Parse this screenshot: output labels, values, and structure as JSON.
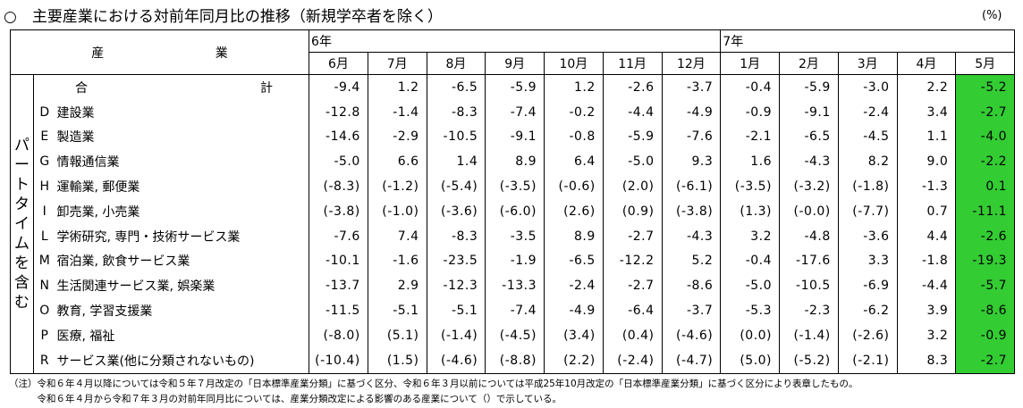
{
  "title": "○　主要産業における対前年同月比の推移（新規学卒者を除く）",
  "unit": "(%)",
  "header": {
    "industry_char1": "産",
    "industry_char2": "業",
    "years": [
      "6年",
      "7年"
    ],
    "months": [
      "6月",
      "7月",
      "8月",
      "9月",
      "10月",
      "11月",
      "12月",
      "1月",
      "2月",
      "3月",
      "4月",
      "5月"
    ]
  },
  "side_label": [
    "パ",
    "ー",
    "ト",
    "タ",
    "イ",
    "ム",
    "を",
    "含",
    "む"
  ],
  "highlight_color": "#33cc33",
  "rows": [
    {
      "code": "",
      "name_l": "合",
      "name_r": "計",
      "values": [
        "-9.4",
        "1.2",
        "-6.5",
        "-5.9",
        "1.2",
        "-2.6",
        "-3.7",
        "-0.4",
        "-5.9",
        "-3.0",
        "2.2",
        "-5.2"
      ]
    },
    {
      "code": "D",
      "name": "建設業",
      "values": [
        "-12.8",
        "-1.4",
        "-8.3",
        "-7.4",
        "-0.2",
        "-4.4",
        "-4.9",
        "-0.9",
        "-9.1",
        "-2.4",
        "3.4",
        "-2.7"
      ]
    },
    {
      "code": "E",
      "name": "製造業",
      "values": [
        "-14.6",
        "-2.9",
        "-10.5",
        "-9.1",
        "-0.8",
        "-5.9",
        "-7.6",
        "-2.1",
        "-6.5",
        "-4.5",
        "1.1",
        "-4.0"
      ]
    },
    {
      "code": "G",
      "name": "情報通信業",
      "values": [
        "-5.0",
        "6.6",
        "1.4",
        "8.9",
        "6.4",
        "-5.0",
        "9.3",
        "1.6",
        "-4.3",
        "8.2",
        "9.0",
        "-2.2"
      ]
    },
    {
      "code": "H",
      "name": "運輸業, 郵便業",
      "values": [
        "(-8.3)",
        "(-1.2)",
        "(-5.4)",
        "(-3.5)",
        "(-0.6)",
        "(2.0)",
        "(-6.1)",
        "(-3.5)",
        "(-3.2)",
        "(-1.8)",
        "-1.3",
        "0.1"
      ]
    },
    {
      "code": "I",
      "name": "卸売業, 小売業",
      "values": [
        "(-3.8)",
        "(-1.0)",
        "(-3.6)",
        "(-6.0)",
        "(2.6)",
        "(0.9)",
        "(-3.8)",
        "(1.3)",
        "(-0.0)",
        "(-7.7)",
        "0.7",
        "-11.1"
      ]
    },
    {
      "code": "L",
      "name": "学術研究, 専門・技術サービス業",
      "values": [
        "-7.6",
        "7.4",
        "-8.3",
        "-3.5",
        "8.9",
        "-2.7",
        "-4.3",
        "3.2",
        "-4.8",
        "-3.6",
        "4.4",
        "-2.6"
      ]
    },
    {
      "code": "M",
      "name": "宿泊業, 飲食サービス業",
      "values": [
        "-10.1",
        "-1.6",
        "-23.5",
        "-1.9",
        "-6.5",
        "-12.2",
        "5.2",
        "-0.4",
        "-17.6",
        "3.3",
        "-1.8",
        "-19.3"
      ]
    },
    {
      "code": "N",
      "name": "生活関連サービス業, 娯楽業",
      "values": [
        "-13.7",
        "2.9",
        "-12.3",
        "-13.3",
        "-2.4",
        "-2.7",
        "-8.6",
        "-5.0",
        "-10.5",
        "-6.9",
        "-4.4",
        "-5.7"
      ]
    },
    {
      "code": "O",
      "name": "教育, 学習支援業",
      "values": [
        "-11.5",
        "-5.1",
        "-5.1",
        "-7.4",
        "-4.9",
        "-6.4",
        "-3.7",
        "-5.3",
        "-2.3",
        "-6.2",
        "3.9",
        "-8.6"
      ]
    },
    {
      "code": "P",
      "name": "医療, 福祉",
      "values": [
        "(-8.0)",
        "(5.1)",
        "(-1.4)",
        "(-4.5)",
        "(3.4)",
        "(0.4)",
        "(-4.6)",
        "(0.0)",
        "(-1.4)",
        "(-2.6)",
        "3.2",
        "-0.9"
      ]
    },
    {
      "code": "R",
      "name": "サービス業(他に分類されないもの)",
      "values": [
        "(-10.4)",
        "(1.5)",
        "(-4.6)",
        "(-8.8)",
        "(2.2)",
        "(-2.4)",
        "(-4.7)",
        "(5.0)",
        "(-5.2)",
        "(-2.1)",
        "8.3",
        "-2.7"
      ]
    }
  ],
  "notes": [
    "（注）令和６年４月以降については令和５年７月改定の「日本標準産業分類」に基づく区分、令和６年３月以前については平成25年10月改定の「日本標準産業分類」に基づく区分により表章したもの。",
    "　　　令和６年４月から令和７年３月の対前年同月比については、産業分類改定による影響のある産業について（）で示している。"
  ]
}
